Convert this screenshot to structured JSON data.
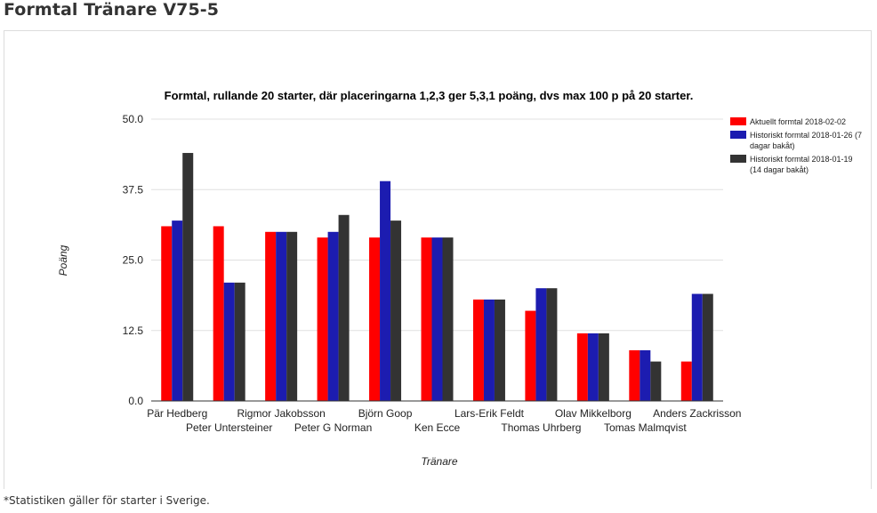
{
  "page": {
    "heading": "Formtal Tränare V75-5",
    "footnote": "*Statistiken gäller för starter i Sverige."
  },
  "colors": {
    "series": [
      "#ff0000",
      "#1c1cb0",
      "#333333"
    ],
    "grid": "#e0e0e0",
    "axis": "#333333"
  },
  "chart_data": {
    "type": "bar",
    "title": "Formtal, rullande 20 starter, där placeringarna 1,2,3 ger 5,3,1 poäng, dvs max 100 p på 20 starter.",
    "xlabel": "Tränare",
    "ylabel": "Poäng",
    "ylim": [
      0,
      50
    ],
    "yticks": [
      "0.0",
      "12.5",
      "25.0",
      "37.5",
      "50.0"
    ],
    "grid": true,
    "legend_position": "right",
    "categories": [
      "Pär Hedberg",
      "Peter Untersteiner",
      "Rigmor Jakobsson",
      "Peter G Norman",
      "Björn Goop",
      "Ken Ecce",
      "Lars-Erik Feldt",
      "Thomas Uhrberg",
      "Olav Mikkelborg",
      "Tomas Malmqvist",
      "Anders Zackrisson"
    ],
    "series": [
      {
        "name": "Aktuellt formtal 2018-02-02",
        "legend_lines": [
          "Aktuellt formtal 2018-02-02"
        ],
        "values": [
          31,
          31,
          30,
          29,
          29,
          29,
          18,
          16,
          12,
          9,
          7
        ]
      },
      {
        "name": "Historiskt formtal 2018-01-26 (7 dagar bakåt)",
        "legend_lines": [
          "Historiskt formtal 2018-01-26 (7",
          "dagar bakåt)"
        ],
        "values": [
          32,
          21,
          30,
          30,
          39,
          29,
          18,
          20,
          12,
          9,
          19
        ]
      },
      {
        "name": "Historiskt formtal 2018-01-19 (14 dagar bakåt)",
        "legend_lines": [
          "Historiskt formtal 2018-01-19",
          "(14 dagar bakåt)"
        ],
        "values": [
          44,
          21,
          30,
          33,
          32,
          29,
          18,
          20,
          12,
          7,
          19
        ]
      }
    ]
  }
}
